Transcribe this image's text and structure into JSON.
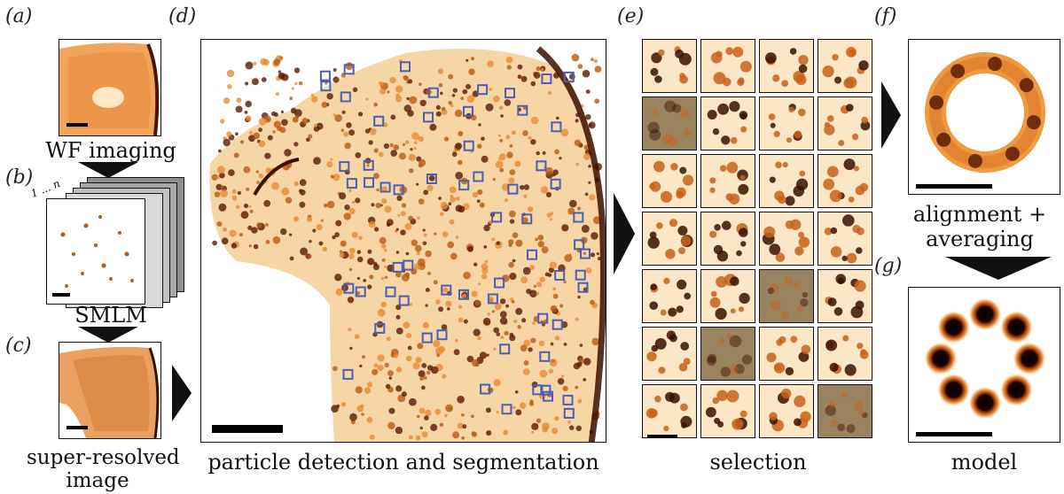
{
  "panels": {
    "a": {
      "letter": "(a)",
      "caption": "WF imaging"
    },
    "b": {
      "letter": "(b)",
      "caption": "SMLM",
      "stack_label": "1 ... n"
    },
    "c": {
      "letter": "(c)",
      "caption_line1": "super-resolved",
      "caption_line2": "image"
    },
    "d": {
      "letter": "(d)",
      "caption": "particle detection and segmentation"
    },
    "e": {
      "letter": "(e)",
      "caption": "selection",
      "grid_rows": 7,
      "grid_cols": 4,
      "grey_cells": [
        4,
        18,
        21,
        27
      ]
    },
    "f": {
      "letter": "(f)",
      "caption_line1": "alignment +",
      "caption_line2": "averaging"
    },
    "g": {
      "letter": "(g)",
      "caption": "model"
    }
  },
  "colors": {
    "background": "#ffffff",
    "signal_light": "#f6c27a",
    "signal_mid": "#d9772a",
    "signal_dark": "#3a0f00",
    "box_outline": "#4a5fb5",
    "frame": "#111111",
    "arrow": "#111111"
  }
}
